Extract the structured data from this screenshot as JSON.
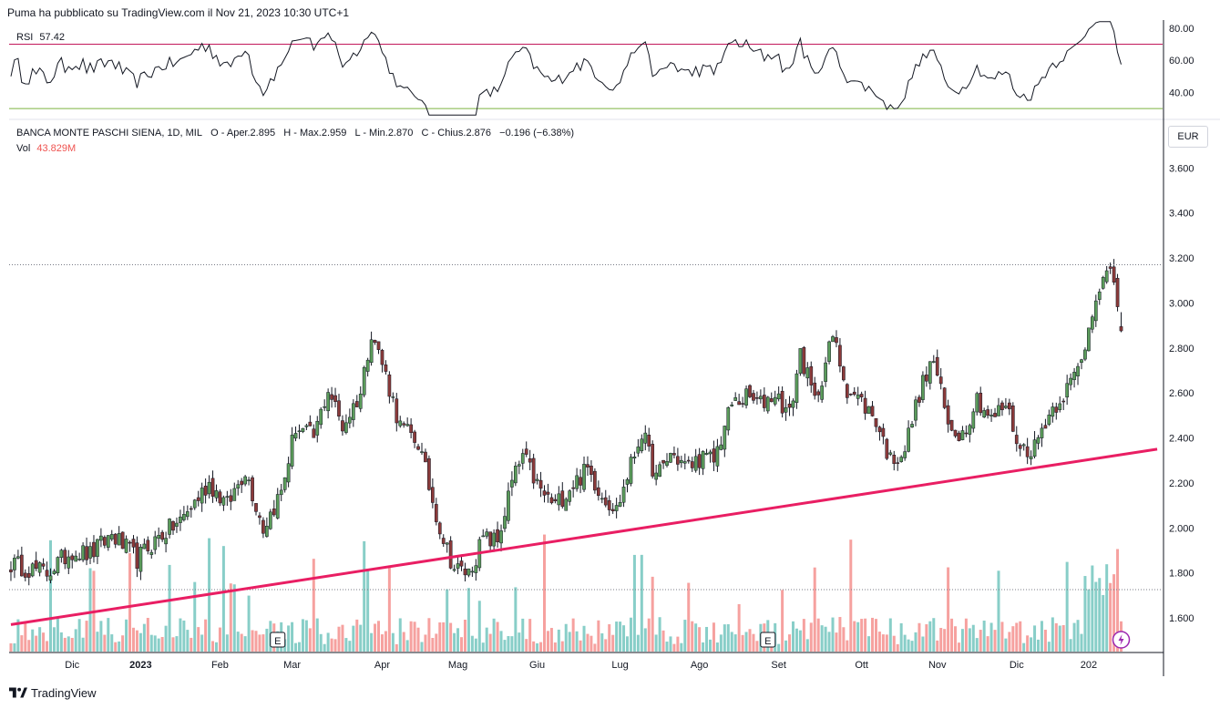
{
  "header": {
    "published_text": "Puma ha pubblicato su TradingView.com il Nov 21, 2023 10:30 UTC+1"
  },
  "rsi": {
    "label": "RSI",
    "value": "57.42",
    "axis_labels": [
      "80.00",
      "60.00",
      "40.00"
    ],
    "upper_band": 70,
    "lower_band": 30
  },
  "legend": {
    "symbol": "BANCA MONTE PASCHI SIENA, 1D, MIL",
    "o_label": "O",
    "o_text": "- Aper.",
    "o_value": "2.895",
    "h_label": "H",
    "h_text": "- Max.",
    "h_value": "2.959",
    "l_label": "L",
    "l_text": "- Min.",
    "l_value": "2.870",
    "c_label": "C",
    "c_text": "- Chius.",
    "c_value": "2.876",
    "change": "−0.196 (−6.38%)",
    "vol_label": "Vol",
    "vol_value": "43.829M"
  },
  "currency_button": "EUR",
  "price_axis_labels": [
    "3.600",
    "3.400",
    "3.200",
    "3.000",
    "2.800",
    "2.600",
    "2.400",
    "2.200",
    "2.000",
    "1.800",
    "1.600"
  ],
  "time_axis_labels": [
    "Dic",
    "2023",
    "Feb",
    "Mar",
    "Apr",
    "Mag",
    "Giu",
    "Lug",
    "Ago",
    "Set",
    "Ott",
    "Nov",
    "Dic",
    "202"
  ],
  "earnings_marker": "E",
  "footer": {
    "brand": "TradingView"
  },
  "colors": {
    "up": "#26a69a",
    "down": "#ef5350",
    "candle_up_body": "#5b9c5b",
    "candle_down_body": "#8b3a3a",
    "trendline": "#e91e63",
    "rsi_upper": "#c2185b",
    "rsi_lower": "#7cb342"
  },
  "chart_data": {
    "type": "candlestick",
    "title": "BANCA MONTE PASCHI SIENA, 1D, MIL",
    "currency": "EUR",
    "ylim": [
      1.45,
      3.8
    ],
    "x_ticks": [
      "Dic",
      "2023",
      "Feb",
      "Mar",
      "Apr",
      "Mag",
      "Giu",
      "Lug",
      "Ago",
      "Set",
      "Ott",
      "Nov",
      "Dic"
    ],
    "close_path": [
      [
        0,
        1.84
      ],
      [
        10,
        1.8
      ],
      [
        17,
        1.9
      ],
      [
        22,
        1.88
      ],
      [
        28,
        1.97
      ],
      [
        35,
        1.86
      ],
      [
        41,
        1.96
      ],
      [
        47,
        2.03
      ],
      [
        55,
        2.2
      ],
      [
        60,
        2.1
      ],
      [
        65,
        2.26
      ],
      [
        70,
        2.0
      ],
      [
        75,
        2.16
      ],
      [
        79,
        2.45
      ],
      [
        84,
        2.4
      ],
      [
        88,
        2.62
      ],
      [
        92,
        2.45
      ],
      [
        97,
        2.6
      ],
      [
        100,
        2.88
      ],
      [
        104,
        2.68
      ],
      [
        108,
        2.45
      ],
      [
        113,
        2.38
      ],
      [
        117,
        2.12
      ],
      [
        120,
        1.95
      ],
      [
        123,
        1.82
      ],
      [
        127,
        1.8
      ],
      [
        131,
        1.95
      ],
      [
        135,
        1.94
      ],
      [
        139,
        2.2
      ],
      [
        142,
        2.32
      ],
      [
        147,
        2.16
      ],
      [
        151,
        2.1
      ],
      [
        155,
        2.18
      ],
      [
        160,
        2.26
      ],
      [
        164,
        2.15
      ],
      [
        168,
        2.08
      ],
      [
        171,
        2.23
      ],
      [
        175,
        2.43
      ],
      [
        179,
        2.22
      ],
      [
        183,
        2.33
      ],
      [
        188,
        2.27
      ],
      [
        191,
        2.31
      ],
      [
        195,
        2.3
      ],
      [
        200,
        2.55
      ],
      [
        204,
        2.58
      ],
      [
        208,
        2.55
      ],
      [
        212,
        2.6
      ],
      [
        216,
        2.5
      ],
      [
        219,
        2.78
      ],
      [
        223,
        2.56
      ],
      [
        228,
        2.85
      ],
      [
        232,
        2.62
      ],
      [
        236,
        2.56
      ],
      [
        240,
        2.48
      ],
      [
        244,
        2.3
      ],
      [
        248,
        2.35
      ],
      [
        252,
        2.6
      ],
      [
        256,
        2.75
      ],
      [
        260,
        2.45
      ],
      [
        264,
        2.42
      ],
      [
        268,
        2.58
      ],
      [
        272,
        2.48
      ],
      [
        276,
        2.55
      ],
      [
        280,
        2.35
      ],
      [
        284,
        2.36
      ],
      [
        287,
        2.48
      ],
      [
        291,
        2.58
      ],
      [
        294,
        2.64
      ],
      [
        297,
        2.74
      ],
      [
        301,
        3.05
      ],
      [
        304,
        3.12
      ],
      [
        306,
        3.1
      ],
      [
        308,
        2.9
      ]
    ],
    "last_candle": {
      "open": 2.895,
      "high": 2.959,
      "low": 2.87,
      "close": 2.876,
      "change": -0.196,
      "change_pct": -6.38
    },
    "volume": {
      "last": "43.829M"
    },
    "trendline": {
      "start": [
        0,
        1.57
      ],
      "end": [
        318,
        2.35
      ]
    },
    "rsi": {
      "period_value": 57.42,
      "ylim": [
        25,
        85
      ],
      "ticks": [
        80,
        60,
        40
      ],
      "bands": [
        70,
        30
      ]
    },
    "earnings_events_index": [
      74,
      210
    ]
  }
}
